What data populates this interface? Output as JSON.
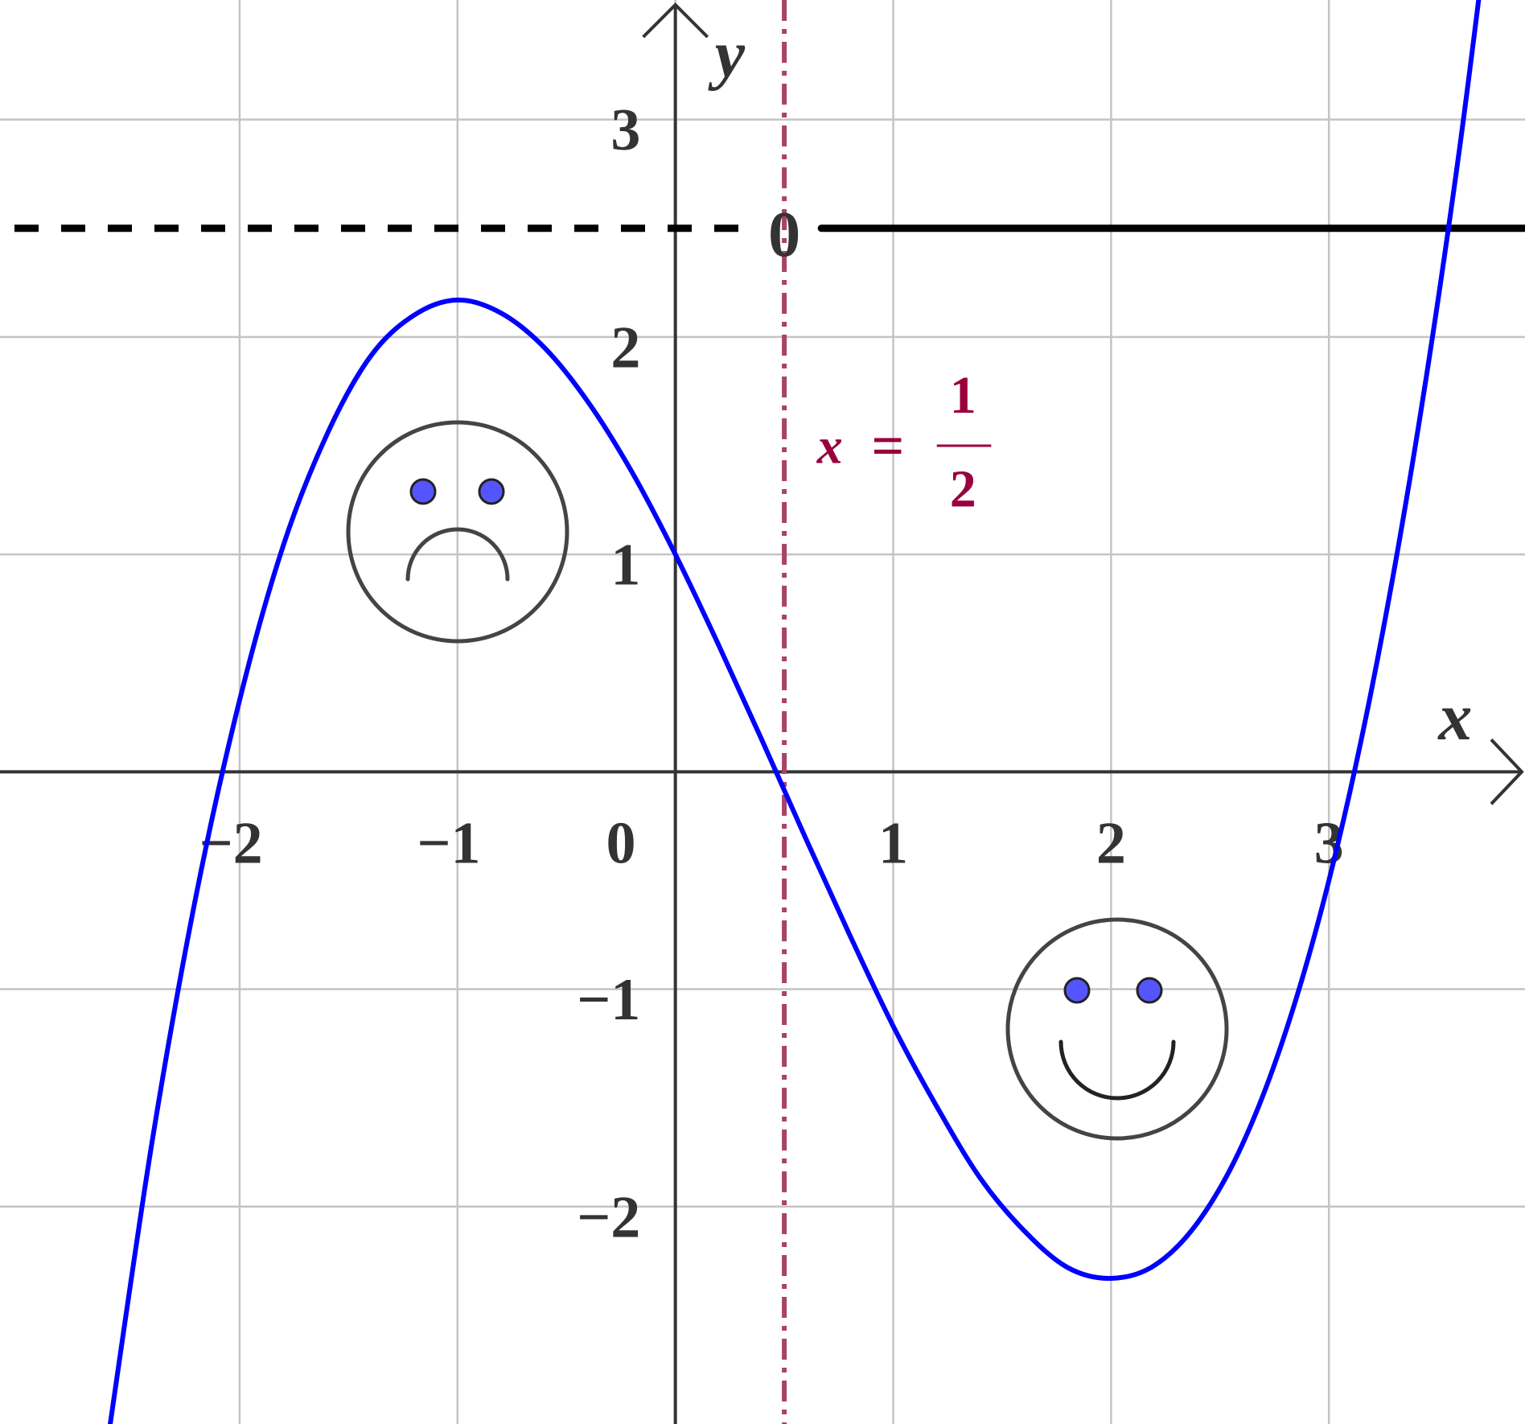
{
  "chart_data": {
    "type": "line",
    "x": [
      -2.6,
      -2.4,
      -2.2,
      -2.0,
      -1.8,
      -1.6,
      -1.4,
      -1.2,
      -1.0,
      -0.8,
      -0.6,
      -0.4,
      -0.2,
      0,
      0.2,
      0.4,
      0.6,
      0.8,
      1.0,
      1.2,
      1.4,
      1.6,
      1.8,
      2.0,
      2.2,
      2.4,
      2.6,
      2.8,
      3.0,
      3.2,
      3.4,
      3.6,
      3.8
    ],
    "values": [
      -3.04,
      -1.69,
      -0.57,
      0.33,
      1.04,
      1.55,
      1.91,
      2.1,
      2.17,
      2.11,
      1.95,
      1.7,
      1.38,
      1,
      0.58,
      0.14,
      -0.31,
      -0.75,
      -1.17,
      -1.54,
      -1.87,
      -2.11,
      -2.28,
      -2.33,
      -2.27,
      -2.07,
      -1.72,
      -1.2,
      -0.5,
      0.4,
      1.52,
      2.87,
      4.47
    ],
    "color": "#0000ff",
    "x_label": "x",
    "y_label": "y",
    "xlim": [
      -3.1,
      3.9
    ],
    "ylim": [
      -3,
      3.55
    ],
    "xticks": [
      {
        "value": -2,
        "label": "−2"
      },
      {
        "value": -1,
        "label": "−1"
      },
      0,
      1,
      2,
      3
    ],
    "yticks": [
      {
        "value": -2,
        "label": "−2"
      },
      {
        "value": -1,
        "label": "−1"
      },
      1,
      2,
      3
    ],
    "grid": true,
    "vline": {
      "x": 0.5,
      "color": "#a8436c",
      "var": "x",
      "eq": "=",
      "numerator": "1",
      "denominator": "2"
    },
    "hline": {
      "y": 2.5,
      "split_x": 0.5,
      "label": "0"
    }
  }
}
